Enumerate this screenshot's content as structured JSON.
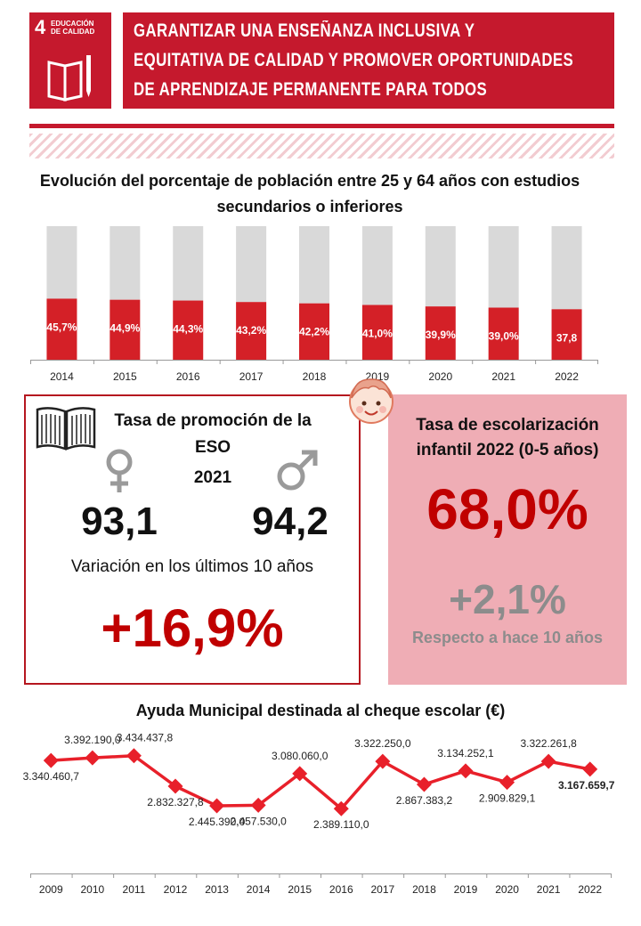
{
  "header": {
    "sdg_number": "4",
    "sdg_label": "EDUCACIÓN DE CALIDAD",
    "title_lines": [
      "GARANTIZAR UNA ENSEÑANZA INCLUSIVA Y",
      "EQUITATIVA DE CALIDAD Y PROMOVER OPORTUNIDADES",
      "DE APRENDIZAJE PERMANENTE PARA TODOS"
    ],
    "accent_color": "#c5192d"
  },
  "chart_data": [
    {
      "type": "bar",
      "stacked_percent": true,
      "title_lines": [
        "Evolución del porcentaje de población entre 25 y 64 años con estudios",
        "secundarios o inferiores"
      ],
      "categories": [
        "2014",
        "2015",
        "2016",
        "2017",
        "2018",
        "2019",
        "2020",
        "2021",
        "2022"
      ],
      "values": [
        45.7,
        44.9,
        44.3,
        43.2,
        42.2,
        41.0,
        39.9,
        39.0,
        37.8
      ],
      "value_labels": [
        "45,7%",
        "44,9%",
        "44,3%",
        "43,2%",
        "42,2%",
        "41,0%",
        "39,9%",
        "39,0%",
        "37,8"
      ],
      "ylim": [
        0,
        100
      ],
      "colors": {
        "value": "#d42027",
        "remainder": "#d9d9d9"
      }
    },
    {
      "type": "line",
      "title": "Ayuda Municipal destinada al cheque escolar (€)",
      "categories": [
        "2009",
        "2010",
        "2011",
        "2012",
        "2013",
        "2014",
        "2015",
        "2016",
        "2017",
        "2018",
        "2019",
        "2020",
        "2021",
        "2022"
      ],
      "values": [
        3340460.7,
        3392190.0,
        3434437.8,
        2832327.8,
        2445390.0,
        2457530.0,
        3080060.0,
        2389110.0,
        3322250.0,
        2867383.2,
        3134252.1,
        2909829.1,
        3322261.8,
        3167659.7
      ],
      "value_labels": [
        "3.340.460,7",
        "3.392.190,0",
        "3.434.437,8",
        "2.832.327,8",
        "2.445.390,0",
        "2.457.530,0",
        "3.080.060,0",
        "2.389.110,0",
        "3.322.250,0",
        "2.867.383,2",
        "3.134.252,1",
        "2.909.829,1",
        "3.322.261,8",
        "3.167.659,7"
      ],
      "highlight_last": true,
      "color": "#e8202a"
    }
  ],
  "promotion": {
    "title_line1": "Tasa de promoción de la",
    "title_line2": "ESO",
    "year": "2021",
    "female_value": "93,1",
    "male_value": "94,2",
    "variation_label": "Variación en los últimos 10 años",
    "variation_value": "+16,9%",
    "value_color": "#c00000"
  },
  "enrollment": {
    "title_line1": "Tasa de escolarización",
    "title_line2": "infantil 2022 (0-5 años)",
    "value": "68,0%",
    "change": "+2,1%",
    "change_label": "Respecto a hace 10 años",
    "value_color": "#c00000",
    "change_color": "#8c8c8c"
  },
  "icons": [
    "book-icon",
    "female-symbol-icon",
    "male-symbol-icon",
    "child-face-icon",
    "open-book-pencil-icon"
  ]
}
